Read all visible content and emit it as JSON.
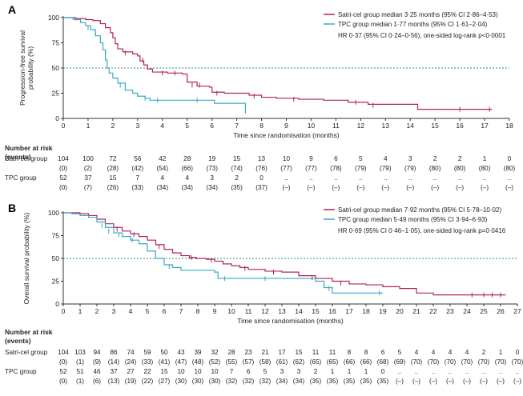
{
  "colors": {
    "satri": "#b0245a",
    "tpc": "#3aa8c8",
    "ref": "#2a8c74",
    "axis": "#333333"
  },
  "chart_data": [
    {
      "panel": "A",
      "type": "line",
      "title": "",
      "xlabel": "Time since randomisation (months)",
      "ylabel": "Progression-free survival probability (%)",
      "xlim": [
        0,
        18
      ],
      "ylim": [
        0,
        100
      ],
      "x_ticks": [
        "0",
        "1",
        "2",
        "3",
        "4",
        "5",
        "6",
        "7",
        "8",
        "9",
        "10",
        "11",
        "12",
        "13",
        "14",
        "15",
        "16",
        "17",
        "18"
      ],
      "y_ticks": [
        "0",
        "25",
        "50",
        "75",
        "100"
      ],
      "reference_line": 50,
      "legend": [
        {
          "key": "satri",
          "label": "Satri-cel group median 3·25 months (95% CI 2·86–4·53)"
        },
        {
          "key": "tpc",
          "label": "TPC group median 1·77 months (95% CI 1·61–2·04)"
        }
      ],
      "annotation": "HR 0·37 (95% CI 0·24–0·56), one-sided log-rank p<0·0001",
      "series": [
        {
          "key": "satri",
          "name": "Satri-cel group",
          "points": [
            [
              0,
              100
            ],
            [
              0.5,
              99
            ],
            [
              0.9,
              98
            ],
            [
              1.2,
              97
            ],
            [
              1.5,
              94
            ],
            [
              1.7,
              90
            ],
            [
              1.9,
              85
            ],
            [
              2.0,
              80
            ],
            [
              2.1,
              74
            ],
            [
              2.2,
              69
            ],
            [
              2.4,
              66
            ],
            [
              2.8,
              64
            ],
            [
              3.0,
              62
            ],
            [
              3.1,
              57
            ],
            [
              3.25,
              53
            ],
            [
              3.4,
              49
            ],
            [
              3.6,
              46
            ],
            [
              4.2,
              45
            ],
            [
              4.8,
              44
            ],
            [
              5.0,
              36
            ],
            [
              5.4,
              32
            ],
            [
              5.9,
              31
            ],
            [
              6.0,
              26
            ],
            [
              6.5,
              25
            ],
            [
              7.5,
              23
            ],
            [
              8.0,
              21
            ],
            [
              8.6,
              20
            ],
            [
              9.5,
              19
            ],
            [
              10.5,
              18
            ],
            [
              11.5,
              16
            ],
            [
              12.3,
              14
            ],
            [
              14.3,
              9
            ],
            [
              17.3,
              9
            ]
          ],
          "censor": [
            [
              2.5,
              65
            ],
            [
              3.2,
              58
            ],
            [
              4.0,
              45
            ],
            [
              4.5,
              45
            ],
            [
              5.2,
              33
            ],
            [
              5.5,
              33
            ],
            [
              6.2,
              25
            ],
            [
              7.7,
              22
            ],
            [
              9.3,
              19
            ],
            [
              11.8,
              16
            ],
            [
              12.5,
              13
            ],
            [
              16.0,
              9
            ],
            [
              17.2,
              9
            ]
          ]
        },
        {
          "key": "tpc",
          "name": "TPC group",
          "points": [
            [
              0,
              100
            ],
            [
              0.4,
              98
            ],
            [
              0.7,
              95
            ],
            [
              0.9,
              92
            ],
            [
              1.1,
              88
            ],
            [
              1.3,
              82
            ],
            [
              1.5,
              75
            ],
            [
              1.6,
              68
            ],
            [
              1.7,
              58
            ],
            [
              1.77,
              50
            ],
            [
              1.85,
              45
            ],
            [
              2.0,
              40
            ],
            [
              2.2,
              35
            ],
            [
              2.5,
              28
            ],
            [
              2.8,
              25
            ],
            [
              3.0,
              22
            ],
            [
              3.3,
              20
            ],
            [
              3.5,
              18
            ],
            [
              5.9,
              18
            ],
            [
              6.1,
              15
            ],
            [
              7.2,
              15
            ],
            [
              7.35,
              5
            ]
          ],
          "censor": [
            [
              1.0,
              90
            ],
            [
              1.3,
              84
            ],
            [
              2.3,
              33
            ],
            [
              3.3,
              20
            ],
            [
              3.8,
              18
            ],
            [
              5.4,
              18
            ]
          ]
        }
      ],
      "risk_table": {
        "header": "Number at risk\n(events)",
        "times": [
          0,
          1,
          2,
          3,
          4,
          5,
          6,
          7,
          8,
          9,
          10,
          11,
          12,
          13,
          14,
          15,
          16,
          17,
          18
        ],
        "rows": [
          {
            "label": "Satri-cel group",
            "at_risk": [
              "104",
              "100",
              "72",
              "56",
              "42",
              "28",
              "19",
              "15",
              "13",
              "10",
              "9",
              "6",
              "5",
              "4",
              "3",
              "2",
              "2",
              "1",
              "0"
            ],
            "events": [
              "(0)",
              "(2)",
              "(28)",
              "(42)",
              "(54)",
              "(66)",
              "(73)",
              "(74)",
              "(76)",
              "(77)",
              "(77)",
              "(78)",
              "(79)",
              "(79)",
              "(79)",
              "(80)",
              "(80)",
              "(80)",
              "(80)"
            ]
          },
          {
            "label": "TPC group",
            "at_risk": [
              "52",
              "37",
              "15",
              "7",
              "4",
              "4",
              "3",
              "2",
              "0",
              "..",
              "..",
              "..",
              "..",
              "..",
              "..",
              "..",
              "..",
              "..",
              ".."
            ],
            "events": [
              "(0)",
              "(7)",
              "(26)",
              "(33)",
              "(34)",
              "(34)",
              "(34)",
              "(35)",
              "(37)",
              "(–)",
              "(–)",
              "(–)",
              "(–)",
              "(–)",
              "(–)",
              "(–)",
              "(–)",
              "(–)",
              "(–)"
            ]
          }
        ]
      }
    },
    {
      "panel": "B",
      "type": "line",
      "title": "",
      "xlabel": "Time since randomisation (months)",
      "ylabel": "Overall survival probability (%)",
      "xlim": [
        0,
        27
      ],
      "ylim": [
        0,
        100
      ],
      "x_ticks": [
        "0",
        "1",
        "2",
        "3",
        "4",
        "5",
        "6",
        "7",
        "8",
        "9",
        "10",
        "11",
        "12",
        "13",
        "14",
        "15",
        "16",
        "17",
        "18",
        "19",
        "20",
        "21",
        "22",
        "23",
        "24",
        "25",
        "26",
        "27"
      ],
      "y_ticks": [
        "0",
        "25",
        "50",
        "75",
        "100"
      ],
      "reference_line": 50,
      "legend": [
        {
          "key": "satri",
          "label": "Satri-cel group median 7·92 months (95% CI 5·78–10·02)"
        },
        {
          "key": "tpc",
          "label": "TPC group median 5·49 months (95% CI 3·94–6·93)"
        }
      ],
      "annotation": "HR 0·69 (95% CI 0·46–1·05), one-sided log-rank p=0·0416",
      "series": [
        {
          "key": "satri",
          "name": "Satri-cel group",
          "points": [
            [
              0,
              100
            ],
            [
              1,
              99
            ],
            [
              1.5,
              97
            ],
            [
              2,
              93
            ],
            [
              2.5,
              88
            ],
            [
              3,
              84
            ],
            [
              3.5,
              80
            ],
            [
              4,
              77
            ],
            [
              4.5,
              74
            ],
            [
              5,
              70
            ],
            [
              5.5,
              65
            ],
            [
              6,
              60
            ],
            [
              6.5,
              56
            ],
            [
              7,
              53
            ],
            [
              7.5,
              51
            ],
            [
              7.92,
              50
            ],
            [
              8.5,
              49
            ],
            [
              9,
              47
            ],
            [
              9.5,
              44
            ],
            [
              10,
              42
            ],
            [
              10.5,
              40
            ],
            [
              11,
              38
            ],
            [
              12,
              36
            ],
            [
              13,
              35
            ],
            [
              14,
              31
            ],
            [
              15,
              28
            ],
            [
              16,
              25
            ],
            [
              17,
              22
            ],
            [
              18,
              21
            ],
            [
              19,
              19
            ],
            [
              20,
              17
            ],
            [
              21,
              12
            ],
            [
              22,
              10
            ],
            [
              26.3,
              10
            ]
          ],
          "censor": [
            [
              3.2,
              82
            ],
            [
              4.2,
              76
            ],
            [
              5.7,
              63
            ],
            [
              7.6,
              51
            ],
            [
              8.8,
              48
            ],
            [
              10.8,
              39
            ],
            [
              12.5,
              35
            ],
            [
              14.8,
              29
            ],
            [
              16.5,
              23
            ],
            [
              24.3,
              10
            ],
            [
              25.0,
              10
            ],
            [
              25.5,
              10
            ],
            [
              26.0,
              10
            ]
          ]
        },
        {
          "key": "tpc",
          "name": "TPC group",
          "points": [
            [
              0,
              100
            ],
            [
              0.5,
              99
            ],
            [
              1,
              97
            ],
            [
              1.5,
              95
            ],
            [
              2,
              90
            ],
            [
              2.5,
              84
            ],
            [
              3,
              78
            ],
            [
              3.5,
              74
            ],
            [
              4,
              70
            ],
            [
              4.5,
              66
            ],
            [
              5,
              58
            ],
            [
              5.49,
              50
            ],
            [
              6,
              43
            ],
            [
              6.5,
              40
            ],
            [
              7,
              37
            ],
            [
              9,
              35
            ],
            [
              9.2,
              28
            ],
            [
              14,
              28
            ],
            [
              15,
              25
            ],
            [
              15.5,
              18
            ],
            [
              16,
              12
            ],
            [
              19,
              12
            ]
          ],
          "censor": [
            [
              2.3,
              86
            ],
            [
              2.7,
              80
            ],
            [
              3.3,
              76
            ],
            [
              4.1,
              70
            ],
            [
              6.3,
              41
            ],
            [
              9.6,
              28
            ],
            [
              12.0,
              28
            ],
            [
              15.8,
              17
            ],
            [
              18.8,
              12
            ]
          ]
        }
      ],
      "risk_table": {
        "header": "Number at risk\n(events)",
        "times": [
          0,
          1,
          2,
          3,
          4,
          5,
          6,
          7,
          8,
          9,
          10,
          11,
          12,
          13,
          14,
          15,
          16,
          17,
          18,
          19,
          20,
          21,
          22,
          23,
          24,
          25,
          26,
          27
        ],
        "rows": [
          {
            "label": "Satri-cel group",
            "at_risk": [
              "104",
              "103",
              "94",
              "86",
              "74",
              "59",
              "50",
              "43",
              "39",
              "32",
              "28",
              "23",
              "21",
              "17",
              "15",
              "11",
              "11",
              "8",
              "8",
              "6",
              "5",
              "4",
              "4",
              "4",
              "4",
              "2",
              "1",
              "0"
            ],
            "events": [
              "(0)",
              "(1)",
              "(9)",
              "(14)",
              "(24)",
              "(33)",
              "(41)",
              "(47)",
              "(48)",
              "(52)",
              "(55)",
              "(57)",
              "(58)",
              "(61)",
              "(62)",
              "(65)",
              "(65)",
              "(66)",
              "(66)",
              "(68)",
              "(69)",
              "(70)",
              "(70)",
              "(70)",
              "(70)",
              "(70)",
              "(70)",
              "(70)"
            ]
          },
          {
            "label": "TPC group",
            "at_risk": [
              "52",
              "51",
              "46",
              "37",
              "27",
              "22",
              "15",
              "10",
              "10",
              "10",
              "7",
              "6",
              "5",
              "3",
              "3",
              "2",
              "1",
              "1",
              "1",
              "0",
              "..",
              "..",
              "..",
              "..",
              "..",
              "..",
              "..",
              ".."
            ],
            "events": [
              "(0)",
              "(1)",
              "(6)",
              "(13)",
              "(19)",
              "(22)",
              "(27)",
              "(30)",
              "(30)",
              "(30)",
              "(32)",
              "(32)",
              "(32)",
              "(34)",
              "(34)",
              "(35)",
              "(35)",
              "(35)",
              "(35)",
              "(35)",
              "(–)",
              "(–)",
              "(–)",
              "(–)",
              "(–)",
              "(–)",
              "(–)",
              "(–)"
            ]
          }
        ]
      }
    }
  ]
}
